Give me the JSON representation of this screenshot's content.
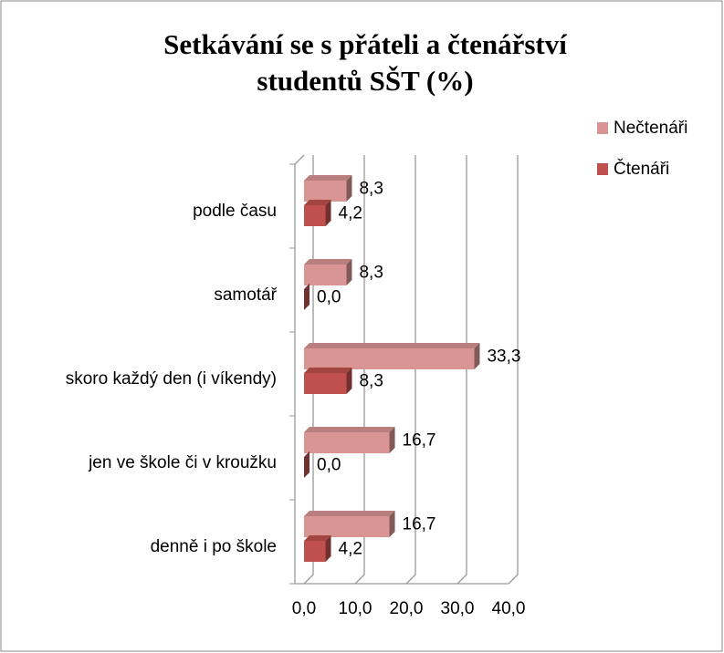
{
  "chart_data": {
    "type": "bar3d",
    "title": [
      "Setkávání se s přáteli a čtenářství",
      "studentů SŠT (%)"
    ],
    "categories": [
      "podle času",
      "samotář",
      "skoro každý den (i víkendy)",
      "jen ve škole či v kroužku",
      "denně i po škole"
    ],
    "series": [
      {
        "name": "Nečtenáři",
        "color": "#d99594",
        "values": [
          8.3,
          8.3,
          33.3,
          16.7,
          16.7
        ],
        "value_labels": [
          "8,3",
          "8,3",
          "33,3",
          "16,7",
          "16,7"
        ]
      },
      {
        "name": "Čtenáři",
        "color": "#c0504d",
        "values": [
          4.2,
          0.0,
          8.3,
          0.0,
          4.2
        ],
        "value_labels": [
          "4,2",
          "0,0",
          "8,3",
          "0,0",
          "4,2"
        ]
      }
    ],
    "xlim": [
      0,
      40
    ],
    "xticks": [
      {
        "value": 0,
        "label": "0,0"
      },
      {
        "value": 10,
        "label": "10,0"
      },
      {
        "value": 20,
        "label": "20,0"
      },
      {
        "value": 30,
        "label": "30,0"
      },
      {
        "value": 40,
        "label": "40,0"
      }
    ],
    "grid": true,
    "legend": "right"
  }
}
